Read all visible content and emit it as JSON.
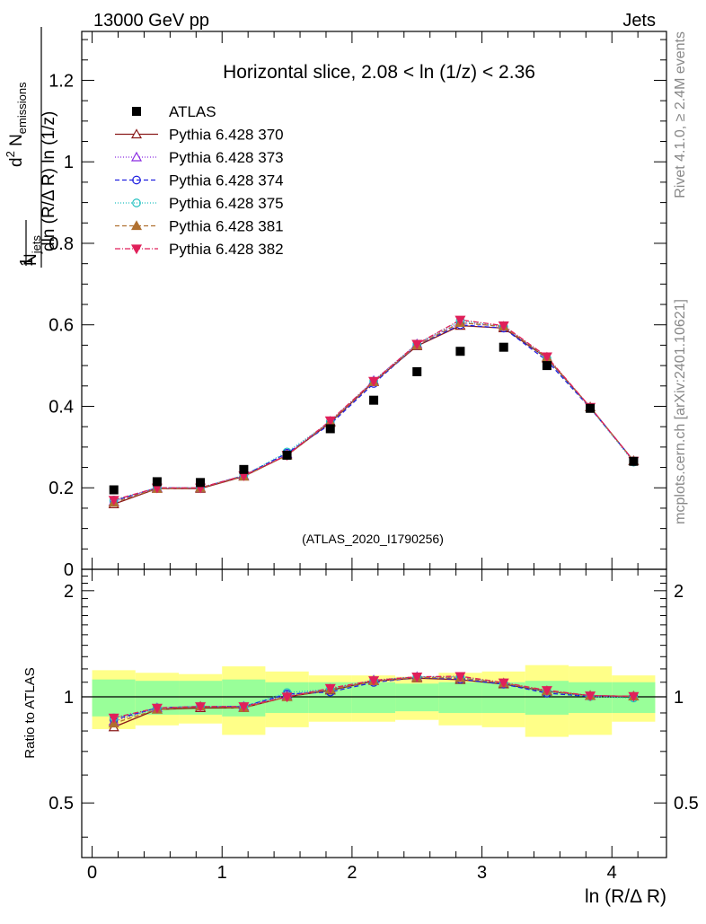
{
  "header": {
    "left": "13000 GeV pp",
    "right": "Jets"
  },
  "side_labels": {
    "top": "Rivet 4.1.0, ≥ 2.4M events",
    "bottom": "mcplots.cern.ch [arXiv:2401.10621]"
  },
  "chart_data": {
    "type": "line",
    "title": "Horizontal slice, 2.08 < ln (1/z) < 2.36",
    "watermark": "(ATLAS_2020_I1790256)",
    "xlabel": "ln (R/Δ R)",
    "ylabel": "1/N_jets d²N_emissions / dln(R/ΔR) ln(1/z)",
    "ylabel_parts": {
      "frac1": "1",
      "njets": "N",
      "njets_sub": "jets",
      "d2n": "d",
      "d2n_sup": "2",
      "nem": " N",
      "nem_sub": "emissions",
      "den": "dln (R/Δ R) ln (1/z)"
    },
    "ratio_ylabel": "Ratio to ATLAS",
    "xlim": [
      -0.08,
      4.42
    ],
    "ylim": [
      0,
      1.32
    ],
    "ratio_ylim": [
      0.35,
      2.3
    ],
    "x_ticks": [
      "0",
      "1",
      "2",
      "3",
      "4"
    ],
    "y_ticks": [
      "0",
      "0.2",
      "0.4",
      "0.6",
      "0.8",
      "1",
      "1.2"
    ],
    "ratio_ticks": [
      "0.5",
      "1",
      "2"
    ],
    "bin_edges": [
      0.0,
      0.333,
      0.667,
      1.0,
      1.333,
      1.667,
      2.0,
      2.333,
      2.667,
      3.0,
      3.333,
      3.667,
      4.0,
      4.333
    ],
    "x": [
      0.167,
      0.5,
      0.833,
      1.167,
      1.5,
      1.833,
      2.167,
      2.5,
      2.833,
      3.167,
      3.5,
      3.833,
      4.167
    ],
    "data": {
      "name": "ATLAS",
      "values": [
        0.195,
        0.215,
        0.213,
        0.245,
        0.28,
        0.345,
        0.415,
        0.485,
        0.535,
        0.545,
        0.5,
        0.395,
        0.265
      ]
    },
    "band_inner": [
      0.12,
      0.11,
      0.11,
      0.12,
      0.1,
      0.1,
      0.1,
      0.09,
      0.1,
      0.1,
      0.11,
      0.1,
      0.1
    ],
    "band_outer": [
      0.19,
      0.17,
      0.16,
      0.22,
      0.18,
      0.15,
      0.15,
      0.14,
      0.17,
      0.18,
      0.23,
      0.22,
      0.15
    ],
    "series": [
      {
        "name": "Pythia 6.428 370",
        "color": "#8b1a1a",
        "dash": "",
        "marker": "triangle-open",
        "values": [
          0.16,
          0.198,
          0.198,
          0.228,
          0.28,
          0.36,
          0.46,
          0.548,
          0.598,
          0.592,
          0.518,
          0.398,
          0.266
        ]
      },
      {
        "name": "Pythia 6.428 373",
        "color": "#8a2be2",
        "dash": "1,2",
        "marker": "triangle-open",
        "values": [
          0.166,
          0.2,
          0.2,
          0.23,
          0.283,
          0.363,
          0.463,
          0.553,
          0.605,
          0.596,
          0.52,
          0.398,
          0.266
        ]
      },
      {
        "name": "Pythia 6.428 374",
        "color": "#2020e0",
        "dash": "5,3",
        "marker": "circle-open",
        "values": [
          0.168,
          0.2,
          0.2,
          0.23,
          0.285,
          0.356,
          0.456,
          0.55,
          0.6,
          0.592,
          0.512,
          0.396,
          0.266
        ]
      },
      {
        "name": "Pythia 6.428 375",
        "color": "#20c0c0",
        "dash": "1,2",
        "marker": "circle-open",
        "values": [
          0.17,
          0.2,
          0.2,
          0.23,
          0.288,
          0.362,
          0.462,
          0.553,
          0.61,
          0.596,
          0.518,
          0.396,
          0.263
        ]
      },
      {
        "name": "Pythia 6.428 381",
        "color": "#b07030",
        "dash": "5,3",
        "marker": "triangle-filled",
        "values": [
          0.164,
          0.198,
          0.2,
          0.228,
          0.28,
          0.362,
          0.46,
          0.55,
          0.605,
          0.596,
          0.52,
          0.398,
          0.266
        ]
      },
      {
        "name": "Pythia 6.428 382",
        "color": "#e0205a",
        "dash": "6,2,1,2",
        "marker": "triangle-down-filled",
        "values": [
          0.17,
          0.2,
          0.2,
          0.23,
          0.28,
          0.365,
          0.462,
          0.553,
          0.612,
          0.598,
          0.522,
          0.398,
          0.266
        ]
      }
    ]
  }
}
